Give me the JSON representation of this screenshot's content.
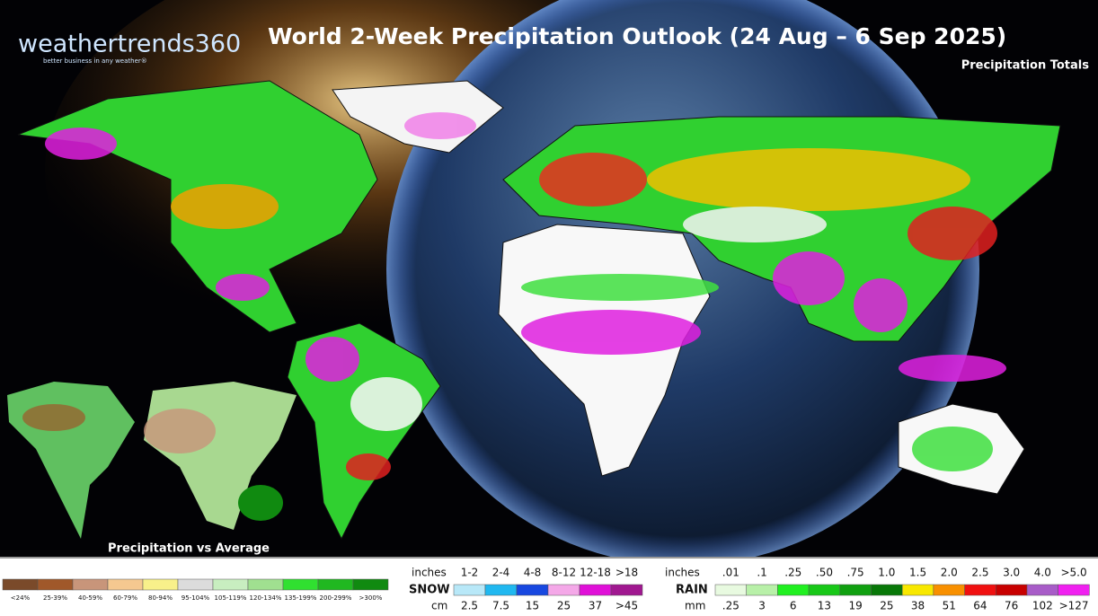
{
  "logo": {
    "name": "weathertrends360",
    "tagline": "better business in any weather®"
  },
  "header": {
    "title": "World 2-Week Precipitation Outlook (24 Aug – 6 Sep 2025)",
    "subtitle": "Precipitation Totals"
  },
  "inset": {
    "label": "Precipitation vs Average"
  },
  "anomaly_legend": {
    "items": [
      {
        "label": "<24%",
        "color": "#7a4a2a"
      },
      {
        "label": "25-39%",
        "color": "#a0582a"
      },
      {
        "label": "40-59%",
        "color": "#c8957a"
      },
      {
        "label": "60-79%",
        "color": "#f5c890"
      },
      {
        "label": "80-94%",
        "color": "#f8f08a"
      },
      {
        "label": "95-104%",
        "color": "#dcdcdc"
      },
      {
        "label": "105-119%",
        "color": "#c8eec0"
      },
      {
        "label": "120-134%",
        "color": "#a0e090"
      },
      {
        "label": "135-199%",
        "color": "#30e030"
      },
      {
        "label": "200-299%",
        "color": "#20b820"
      },
      {
        "label": ">300%",
        "color": "#108a10"
      }
    ]
  },
  "snow_legend": {
    "title": "SNOW",
    "inches_unit": "inches",
    "cm_unit": "cm",
    "items": [
      {
        "inches": "1-2",
        "cm": "2.5",
        "color": "#b8e8f8"
      },
      {
        "inches": "2-4",
        "cm": "7.5",
        "color": "#20b8f0"
      },
      {
        "inches": "4-8",
        "cm": "15",
        "color": "#1848e0"
      },
      {
        "inches": "8-12",
        "cm": "25",
        "color": "#f4a8e8"
      },
      {
        "inches": "12-18",
        "cm": "37",
        "color": "#e010d8"
      },
      {
        "inches": ">18",
        "cm": ">45",
        "color": "#a01890"
      }
    ]
  },
  "rain_legend": {
    "title": "RAIN",
    "inches_unit": "inches",
    "mm_unit": "mm",
    "items": [
      {
        "inches": ".01",
        "mm": ".25",
        "color": "#e8fae0"
      },
      {
        "inches": ".1",
        "mm": "3",
        "color": "#b8f0a8"
      },
      {
        "inches": ".25",
        "mm": "6",
        "color": "#20f020"
      },
      {
        "inches": ".50",
        "mm": "13",
        "color": "#18c818"
      },
      {
        "inches": ".75",
        "mm": "19",
        "color": "#10a010"
      },
      {
        "inches": "1.0",
        "mm": "25",
        "color": "#087808"
      },
      {
        "inches": "1.5",
        "mm": "38",
        "color": "#f8e800"
      },
      {
        "inches": "2.0",
        "mm": "51",
        "color": "#f89000"
      },
      {
        "inches": "2.5",
        "mm": "64",
        "color": "#f01010"
      },
      {
        "inches": "3.0",
        "mm": "76",
        "color": "#c80000"
      },
      {
        "inches": "4.0",
        "mm": "102",
        "color": "#a85cc8"
      },
      {
        "inches": ">5.0",
        "mm": ">127",
        "color": "#f020f0"
      }
    ]
  }
}
